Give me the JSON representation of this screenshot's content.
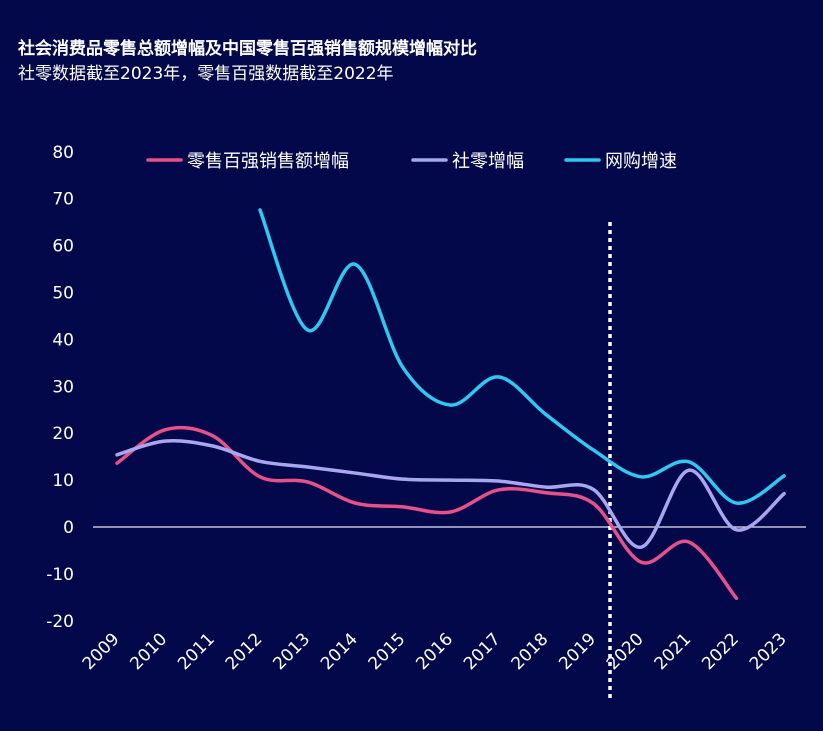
{
  "chart_data": {
    "type": "line",
    "title": "社会消费品零售总额增幅及中国零售百强销售额规模增幅对比",
    "subtitle": "社零数据截至2023年，零售百强数据截至2022年",
    "xlabel": "",
    "ylabel": "",
    "categories": [
      "2009",
      "2010",
      "2011",
      "2012",
      "2013",
      "2014",
      "2015",
      "2016",
      "2017",
      "2018",
      "2019",
      "2020",
      "2021",
      "2022",
      "2023"
    ],
    "ylim": [
      -20,
      80
    ],
    "yticks": [
      -20,
      -10,
      0,
      10,
      20,
      30,
      40,
      50,
      60,
      70,
      80
    ],
    "grid": false,
    "legend_position": "top",
    "reference_line": {
      "type": "vertical-dotted",
      "between": [
        "2019",
        "2020"
      ]
    },
    "series": [
      {
        "name": "零售百强销售额增幅",
        "color": "#e8508a",
        "values": [
          13.6,
          20.7,
          19.5,
          10.7,
          9.6,
          5.1,
          4.3,
          3.2,
          7.9,
          7.3,
          5.0,
          -7.5,
          -3.2,
          -15.2,
          null
        ]
      },
      {
        "name": "社零增幅",
        "color": "#a9a6f0",
        "values": [
          15.4,
          18.3,
          17.3,
          14.0,
          12.8,
          11.5,
          10.2,
          10.0,
          9.8,
          8.5,
          8.0,
          -4.3,
          12.1,
          -0.6,
          7.1
        ]
      },
      {
        "name": "网购增速",
        "color": "#2ec8f0",
        "values": [
          null,
          null,
          null,
          67.6,
          42.0,
          56.0,
          34.0,
          26.0,
          32.0,
          24.0,
          16.4,
          10.7,
          13.9,
          5.1,
          10.9
        ]
      }
    ]
  }
}
